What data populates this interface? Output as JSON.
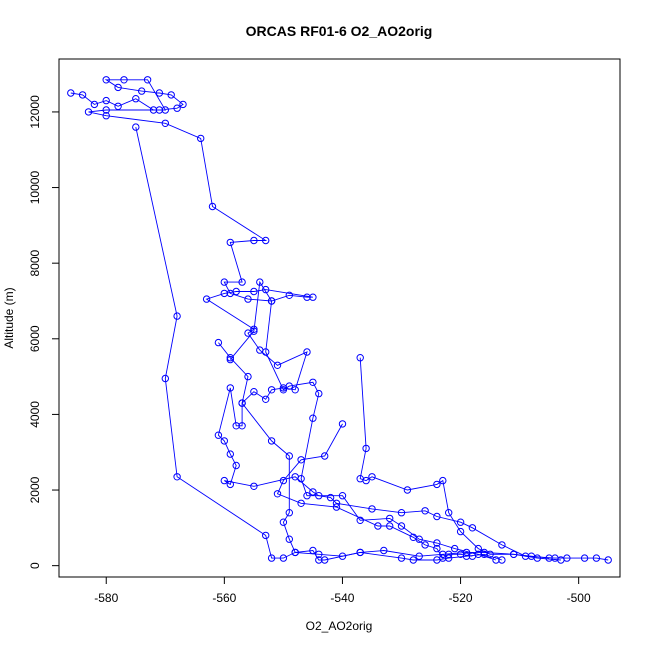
{
  "chart_data": {
    "type": "line",
    "title": "ORCAS RF01-6 O2_AO2orig",
    "xlabel": "O2_AO2orig",
    "ylabel": "Altitude (m)",
    "xlim": [
      -588,
      -493
    ],
    "ylim": [
      -300,
      13400
    ],
    "xticks": [
      -580,
      -560,
      -540,
      -520,
      -500
    ],
    "yticks": [
      0,
      2000,
      4000,
      6000,
      8000,
      10000,
      12000
    ],
    "grid": false,
    "series_color": "#0000ff",
    "marker": "open-circle",
    "series": [
      {
        "name": "",
        "points": [
          [
            -586,
            12500
          ],
          [
            -584,
            12450
          ],
          [
            -582,
            12200
          ],
          [
            -580,
            12300
          ],
          [
            -578,
            12150
          ],
          [
            -575,
            12350
          ],
          [
            -572,
            12050
          ],
          [
            -570,
            12050
          ],
          [
            -573,
            12850
          ],
          [
            -577,
            12850
          ],
          [
            -580,
            12850
          ],
          [
            -578,
            12650
          ],
          [
            -574,
            12550
          ],
          [
            -571,
            12500
          ],
          [
            -569,
            12450
          ],
          [
            -567,
            12200
          ],
          [
            -568,
            12100
          ],
          [
            -571,
            12050
          ],
          [
            -580,
            12050
          ],
          [
            -583,
            12000
          ],
          [
            -580,
            11900
          ],
          [
            -570,
            11700
          ],
          [
            -564,
            11300
          ],
          [
            -562,
            9500
          ],
          [
            -553,
            8600
          ],
          [
            -555,
            8600
          ],
          [
            -559,
            8550
          ],
          [
            -557,
            7500
          ],
          [
            -560,
            7500
          ],
          [
            -559,
            7200
          ],
          [
            -556,
            7050
          ],
          [
            -552,
            7000
          ],
          [
            -549,
            7150
          ],
          [
            -546,
            7100
          ],
          [
            -545,
            7100
          ],
          [
            -553,
            7300
          ],
          [
            -555,
            7250
          ],
          [
            -558,
            7250
          ],
          [
            -560,
            7200
          ],
          [
            -563,
            7050
          ],
          [
            -555,
            6250
          ],
          [
            -556,
            6150
          ],
          [
            -554,
            5700
          ],
          [
            -551,
            5300
          ],
          [
            -546,
            5650
          ],
          [
            -548,
            4650
          ],
          [
            -550,
            4700
          ],
          [
            -552,
            4650
          ],
          [
            -553,
            4400
          ],
          [
            -555,
            4600
          ],
          [
            -557,
            4300
          ],
          [
            -557,
            3700
          ],
          [
            -558,
            3700
          ],
          [
            -559,
            4700
          ],
          [
            -561,
            3450
          ],
          [
            -560,
            3300
          ],
          [
            -559,
            2950
          ],
          [
            -558,
            2650
          ],
          [
            -559,
            2150
          ],
          [
            -560,
            2250
          ],
          [
            -555,
            2100
          ],
          [
            -548,
            2350
          ],
          [
            -545,
            1950
          ],
          [
            -544,
            1850
          ],
          [
            -542,
            1800
          ],
          [
            -541,
            1650
          ],
          [
            -535,
            1500
          ],
          [
            -530,
            1400
          ],
          [
            -526,
            1450
          ],
          [
            -524,
            1300
          ],
          [
            -520,
            1150
          ],
          [
            -518,
            1000
          ],
          [
            -513,
            550
          ],
          [
            -509,
            250
          ],
          [
            -504,
            200
          ],
          [
            -502,
            200
          ],
          [
            -499,
            200
          ],
          [
            -497,
            200
          ],
          [
            -495,
            150
          ]
        ]
      },
      {
        "name": "",
        "points": [
          [
            -575,
            11600
          ],
          [
            -568,
            6600
          ],
          [
            -570,
            4950
          ],
          [
            -568,
            2350
          ],
          [
            -553,
            800
          ],
          [
            -552,
            200
          ],
          [
            -550,
            200
          ],
          [
            -548,
            350
          ],
          [
            -545,
            400
          ],
          [
            -544,
            150
          ],
          [
            -543,
            150
          ],
          [
            -537,
            350
          ],
          [
            -530,
            200
          ],
          [
            -528,
            150
          ],
          [
            -524,
            150
          ],
          [
            -522,
            200
          ],
          [
            -519,
            250
          ],
          [
            -516,
            300
          ],
          [
            -513,
            150
          ]
        ]
      },
      {
        "name": "",
        "points": [
          [
            -561,
            5900
          ],
          [
            -559,
            5500
          ],
          [
            -556,
            5000
          ],
          [
            -557,
            4300
          ],
          [
            -552,
            3300
          ],
          [
            -549,
            2900
          ],
          [
            -549,
            1400
          ],
          [
            -550,
            1150
          ],
          [
            -549,
            700
          ],
          [
            -548,
            350
          ],
          [
            -544,
            300
          ],
          [
            -540,
            250
          ],
          [
            -537,
            350
          ],
          [
            -533,
            400
          ],
          [
            -527,
            250
          ],
          [
            -523,
            300
          ],
          [
            -519,
            350
          ],
          [
            -516,
            350
          ],
          [
            -511,
            300
          ],
          [
            -507,
            200
          ],
          [
            -503,
            150
          ]
        ]
      },
      {
        "name": "",
        "points": [
          [
            -559,
            5450
          ],
          [
            -555,
            6200
          ],
          [
            -554,
            7500
          ],
          [
            -552,
            7000
          ],
          [
            -553,
            5650
          ],
          [
            -550,
            4650
          ],
          [
            -549,
            4750
          ],
          [
            -545,
            4850
          ],
          [
            -544,
            4550
          ],
          [
            -545,
            3900
          ],
          [
            -547,
            2300
          ],
          [
            -546,
            1850
          ],
          [
            -540,
            1850
          ],
          [
            -537,
            1200
          ],
          [
            -532,
            1250
          ],
          [
            -530,
            1050
          ],
          [
            -527,
            700
          ],
          [
            -524,
            600
          ],
          [
            -521,
            450
          ],
          [
            -517,
            300
          ],
          [
            -514,
            150
          ]
        ]
      },
      {
        "name": "",
        "points": [
          [
            -537,
            5500
          ],
          [
            -536,
            3100
          ],
          [
            -537,
            2300
          ],
          [
            -536,
            2250
          ],
          [
            -535,
            2350
          ],
          [
            -529,
            2000
          ],
          [
            -524,
            2150
          ],
          [
            -523,
            2250
          ],
          [
            -522,
            1400
          ],
          [
            -520,
            900
          ],
          [
            -517,
            450
          ],
          [
            -515,
            300
          ],
          [
            -511,
            300
          ],
          [
            -508,
            250
          ],
          [
            -505,
            200
          ]
        ]
      },
      {
        "name": "",
        "points": [
          [
            -540,
            3750
          ],
          [
            -543,
            2900
          ],
          [
            -547,
            2800
          ],
          [
            -550,
            2250
          ],
          [
            -551,
            1900
          ],
          [
            -547,
            1650
          ],
          [
            -541,
            1550
          ],
          [
            -534,
            1050
          ],
          [
            -532,
            1050
          ],
          [
            -528,
            750
          ],
          [
            -526,
            550
          ],
          [
            -524,
            450
          ],
          [
            -523,
            200
          ],
          [
            -522,
            300
          ],
          [
            -520,
            300
          ],
          [
            -518,
            250
          ]
        ]
      }
    ]
  }
}
